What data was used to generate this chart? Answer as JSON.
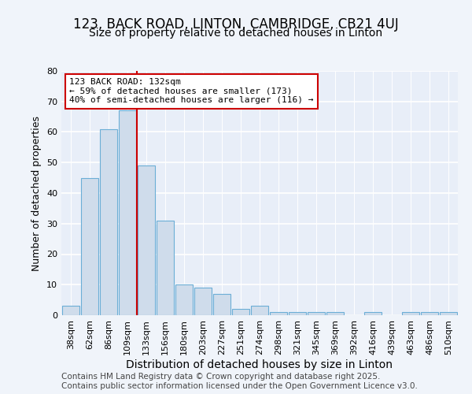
{
  "title1": "123, BACK ROAD, LINTON, CAMBRIDGE, CB21 4UJ",
  "title2": "Size of property relative to detached houses in Linton",
  "xlabel": "Distribution of detached houses by size in Linton",
  "ylabel": "Number of detached properties",
  "categories": [
    "38sqm",
    "62sqm",
    "86sqm",
    "109sqm",
    "133sqm",
    "156sqm",
    "180sqm",
    "203sqm",
    "227sqm",
    "251sqm",
    "274sqm",
    "298sqm",
    "321sqm",
    "345sqm",
    "369sqm",
    "392sqm",
    "416sqm",
    "439sqm",
    "463sqm",
    "486sqm",
    "510sqm"
  ],
  "values": [
    3,
    45,
    61,
    67,
    49,
    31,
    10,
    9,
    7,
    2,
    3,
    1,
    1,
    1,
    1,
    0,
    1,
    0,
    1,
    1,
    1
  ],
  "bar_color": "#cfdceb",
  "bar_edge_color": "#6baed6",
  "vline_x_index": 4,
  "vline_color": "#cc0000",
  "annotation_text": "123 BACK ROAD: 132sqm\n← 59% of detached houses are smaller (173)\n40% of semi-detached houses are larger (116) →",
  "annotation_box_color": "white",
  "annotation_box_edge_color": "#cc0000",
  "ylim": [
    0,
    80
  ],
  "yticks": [
    0,
    10,
    20,
    30,
    40,
    50,
    60,
    70,
    80
  ],
  "background_color": "#f0f4fa",
  "plot_bg_color": "#e8eef8",
  "grid_color": "white",
  "footer_text": "Contains HM Land Registry data © Crown copyright and database right 2025.\nContains public sector information licensed under the Open Government Licence v3.0.",
  "title1_fontsize": 12,
  "title2_fontsize": 10,
  "xlabel_fontsize": 10,
  "ylabel_fontsize": 9,
  "tick_fontsize": 8,
  "footer_fontsize": 7.5
}
